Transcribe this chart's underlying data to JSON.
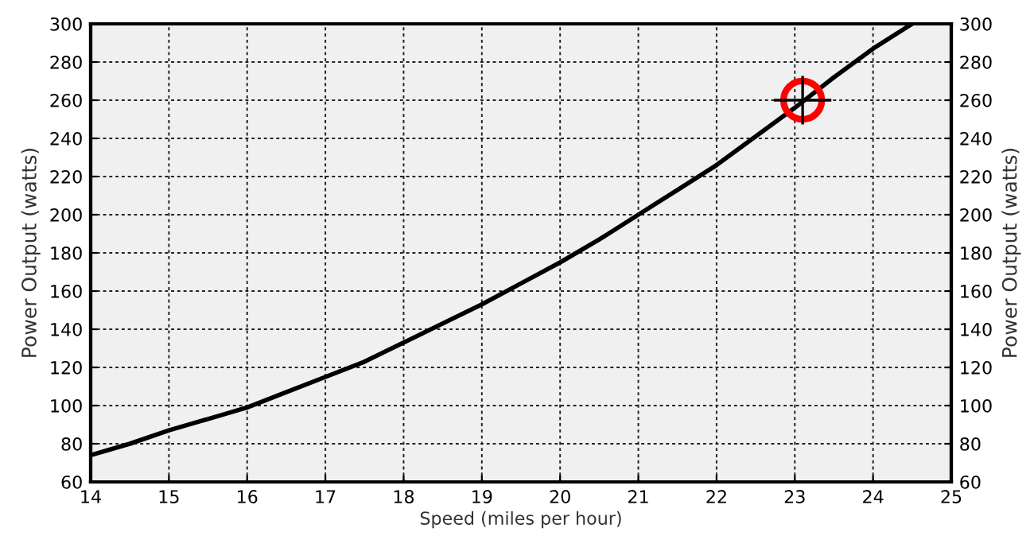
{
  "chart_data": {
    "type": "line",
    "xlabel": "Speed (miles per hour)",
    "ylabel": "Power Output (watts)",
    "y2label": "Power Output (watts)",
    "xlim": [
      14,
      25
    ],
    "xticks": [
      14,
      15,
      16,
      17,
      18,
      19,
      20,
      21,
      22,
      23,
      24,
      25
    ],
    "ylim": [
      60,
      300
    ],
    "yticks": [
      60,
      80,
      100,
      120,
      140,
      160,
      180,
      200,
      220,
      240,
      260,
      280,
      300
    ],
    "y2lim": [
      60,
      300
    ],
    "y2ticks": [
      60,
      80,
      100,
      120,
      140,
      160,
      180,
      200,
      220,
      240,
      260,
      280,
      300
    ],
    "grid": true,
    "line_style": "solid",
    "series": [
      {
        "color": "#000000",
        "marker": "none",
        "x": [
          14,
          14.5,
          15,
          15.5,
          16,
          16.5,
          17,
          17.5,
          18,
          18.5,
          19,
          19.5,
          20,
          20.5,
          21,
          21.5,
          22,
          22.5,
          23,
          23.5,
          24,
          24.5
        ],
        "values": [
          74,
          80,
          87,
          93,
          99,
          107,
          115,
          123,
          133,
          143,
          153,
          164,
          175,
          187,
          200,
          213,
          226,
          241,
          256,
          272,
          287,
          300
        ]
      },
      {
        "type": "scatter",
        "color": "#ff0000",
        "marker": "circle",
        "x": [
          23.1
        ],
        "values": [
          260
        ]
      }
    ]
  }
}
